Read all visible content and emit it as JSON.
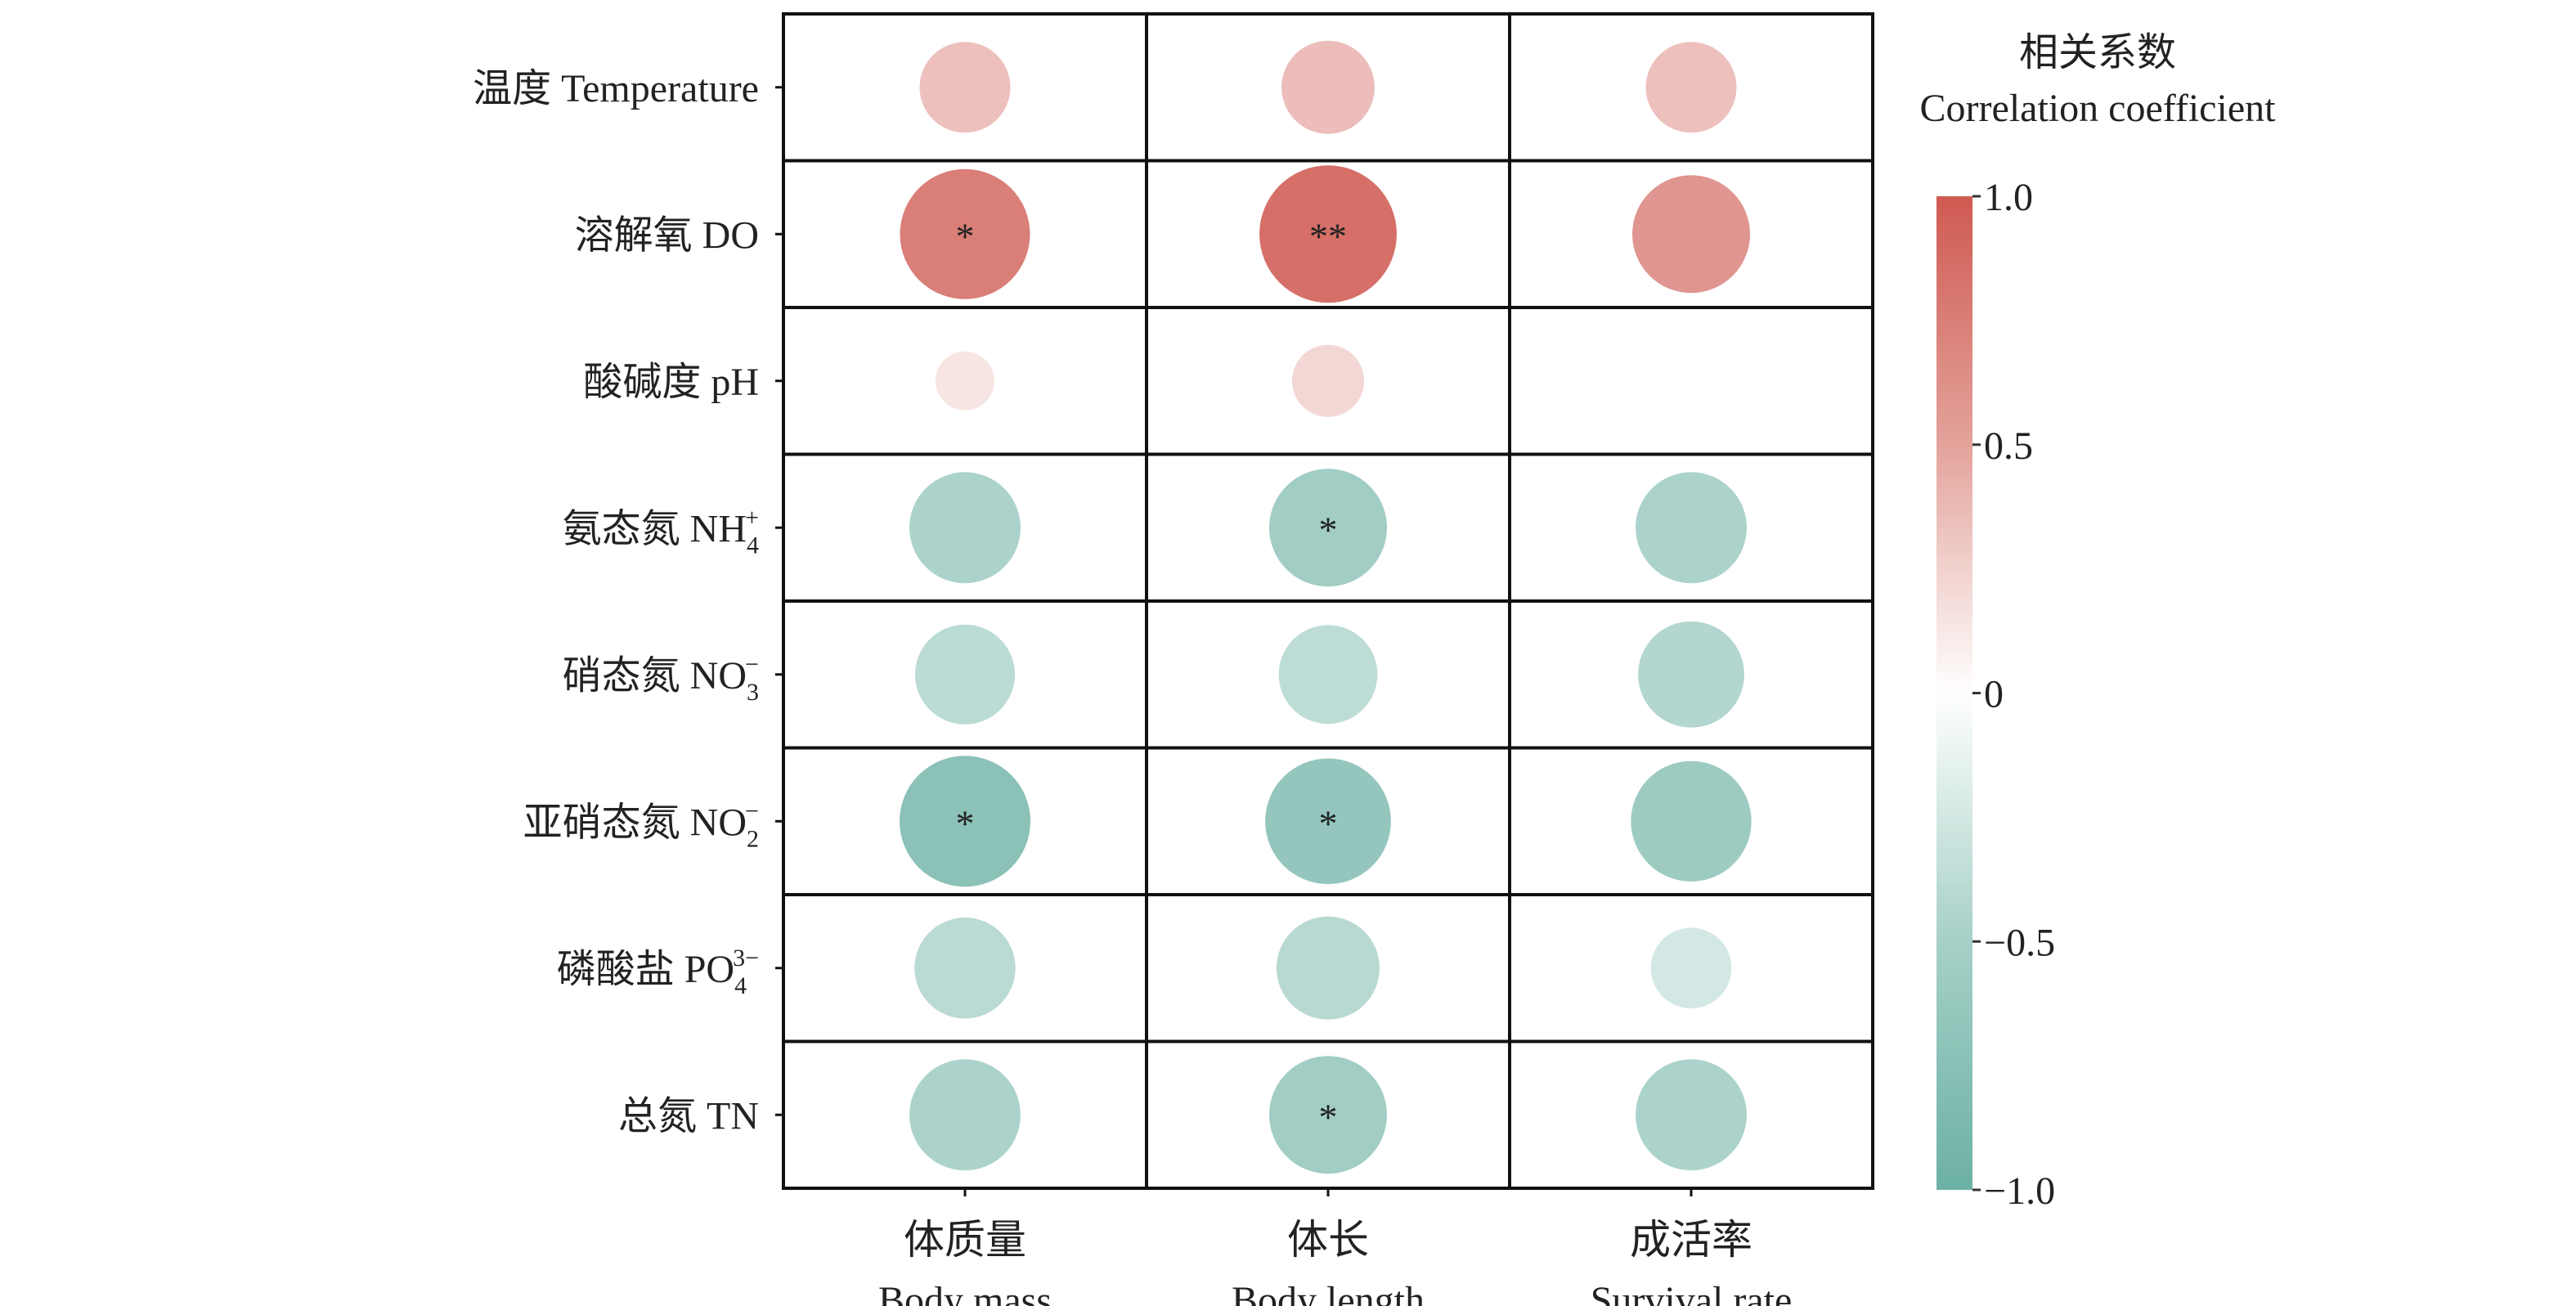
{
  "chart_data": {
    "type": "heatmap",
    "subtype": "bubble correlation matrix",
    "rows": [
      {
        "label": "温度 Temperature",
        "base": "温度 Temperature",
        "sup": "",
        "sub": ""
      },
      {
        "label": "溶解氧 DO",
        "base": "溶解氧 DO",
        "sup": "",
        "sub": ""
      },
      {
        "label": "酸碱度 pH",
        "base": "酸碱度 pH",
        "sup": "",
        "sub": ""
      },
      {
        "label": "氨态氮 NH4+",
        "base": "氨态氮 NH",
        "sup": "+",
        "sub": "4"
      },
      {
        "label": "硝态氮 NO3−",
        "base": "硝态氮 NO",
        "sup": "−",
        "sub": "3"
      },
      {
        "label": "亚硝态氮 NO2−",
        "base": "亚硝态氮 NO",
        "sup": "−",
        "sub": "2"
      },
      {
        "label": "磷酸盐 PO43−",
        "base": "磷酸盐 PO",
        "sup": "3−",
        "sub": "4"
      },
      {
        "label": "总氮 TN",
        "base": "总氮 TN",
        "sup": "",
        "sub": ""
      }
    ],
    "columns": [
      {
        "zh": "体质量",
        "en": "Body mass"
      },
      {
        "zh": "体长",
        "en": "Body length"
      },
      {
        "zh": "成活率",
        "en": "Survival rate"
      }
    ],
    "values": [
      [
        0.38,
        0.4,
        0.38
      ],
      [
        0.78,
        0.87,
        0.64
      ],
      [
        0.16,
        0.24,
        0.0
      ],
      [
        -0.57,
        -0.64,
        -0.57
      ],
      [
        -0.46,
        -0.45,
        -0.52
      ],
      [
        -0.79,
        -0.73,
        -0.67
      ],
      [
        -0.47,
        -0.49,
        -0.3
      ],
      [
        -0.57,
        -0.64,
        -0.57
      ]
    ],
    "significance": [
      [
        "",
        "",
        ""
      ],
      [
        "*",
        "**",
        ""
      ],
      [
        "",
        "",
        ""
      ],
      [
        "",
        "*",
        ""
      ],
      [
        "",
        "",
        ""
      ],
      [
        "*",
        "*",
        ""
      ],
      [
        "",
        "",
        ""
      ],
      [
        "",
        "*",
        ""
      ]
    ],
    "colorbar": {
      "title_zh": "相关系数",
      "title_en": "Correlation coefficient",
      "range": [
        -1.0,
        1.0
      ],
      "ticks": [
        {
          "value": 1.0,
          "label": "1.0"
        },
        {
          "value": 0.5,
          "label": "0.5"
        },
        {
          "value": 0,
          "label": "0"
        },
        {
          "value": -0.5,
          "label": "−0.5"
        },
        {
          "value": -1.0,
          "label": "−1.0"
        }
      ],
      "colors": {
        "positive": "#CF5A52",
        "zero": "#FFFFFF",
        "negative": "#6CB1A4"
      }
    },
    "grid": true
  }
}
